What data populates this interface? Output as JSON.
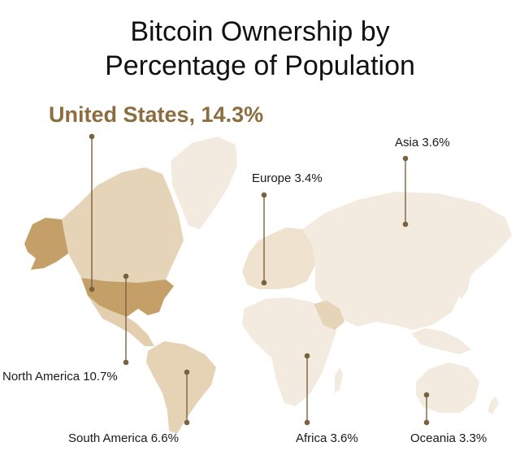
{
  "title_line1": "Bitcoin Ownership by",
  "title_line2": "Percentage of Population",
  "callout": "United States, 14.3%",
  "regions": [
    {
      "name": "North America",
      "value": "10.7%",
      "label": "North America 10.7%"
    },
    {
      "name": "South America",
      "value": "6.6%",
      "label": "South America 6.6%"
    },
    {
      "name": "Europe",
      "value": "3.4%",
      "label": "Europe 3.4%"
    },
    {
      "name": "Asia",
      "value": "3.6%",
      "label": "Asia 3.6%"
    },
    {
      "name": "Africa",
      "value": "3.6%",
      "label": "Africa 3.6%"
    },
    {
      "name": "Oceania",
      "value": "3.3%",
      "label": "Oceania 3.3%"
    }
  ],
  "colors": {
    "us": "#c4a068",
    "highlight": "#8c6d3f",
    "north_america": "#e3ceb0",
    "south_america": "#e6d3b5",
    "world": "#f3ebdf",
    "leader": "#7a6240"
  }
}
